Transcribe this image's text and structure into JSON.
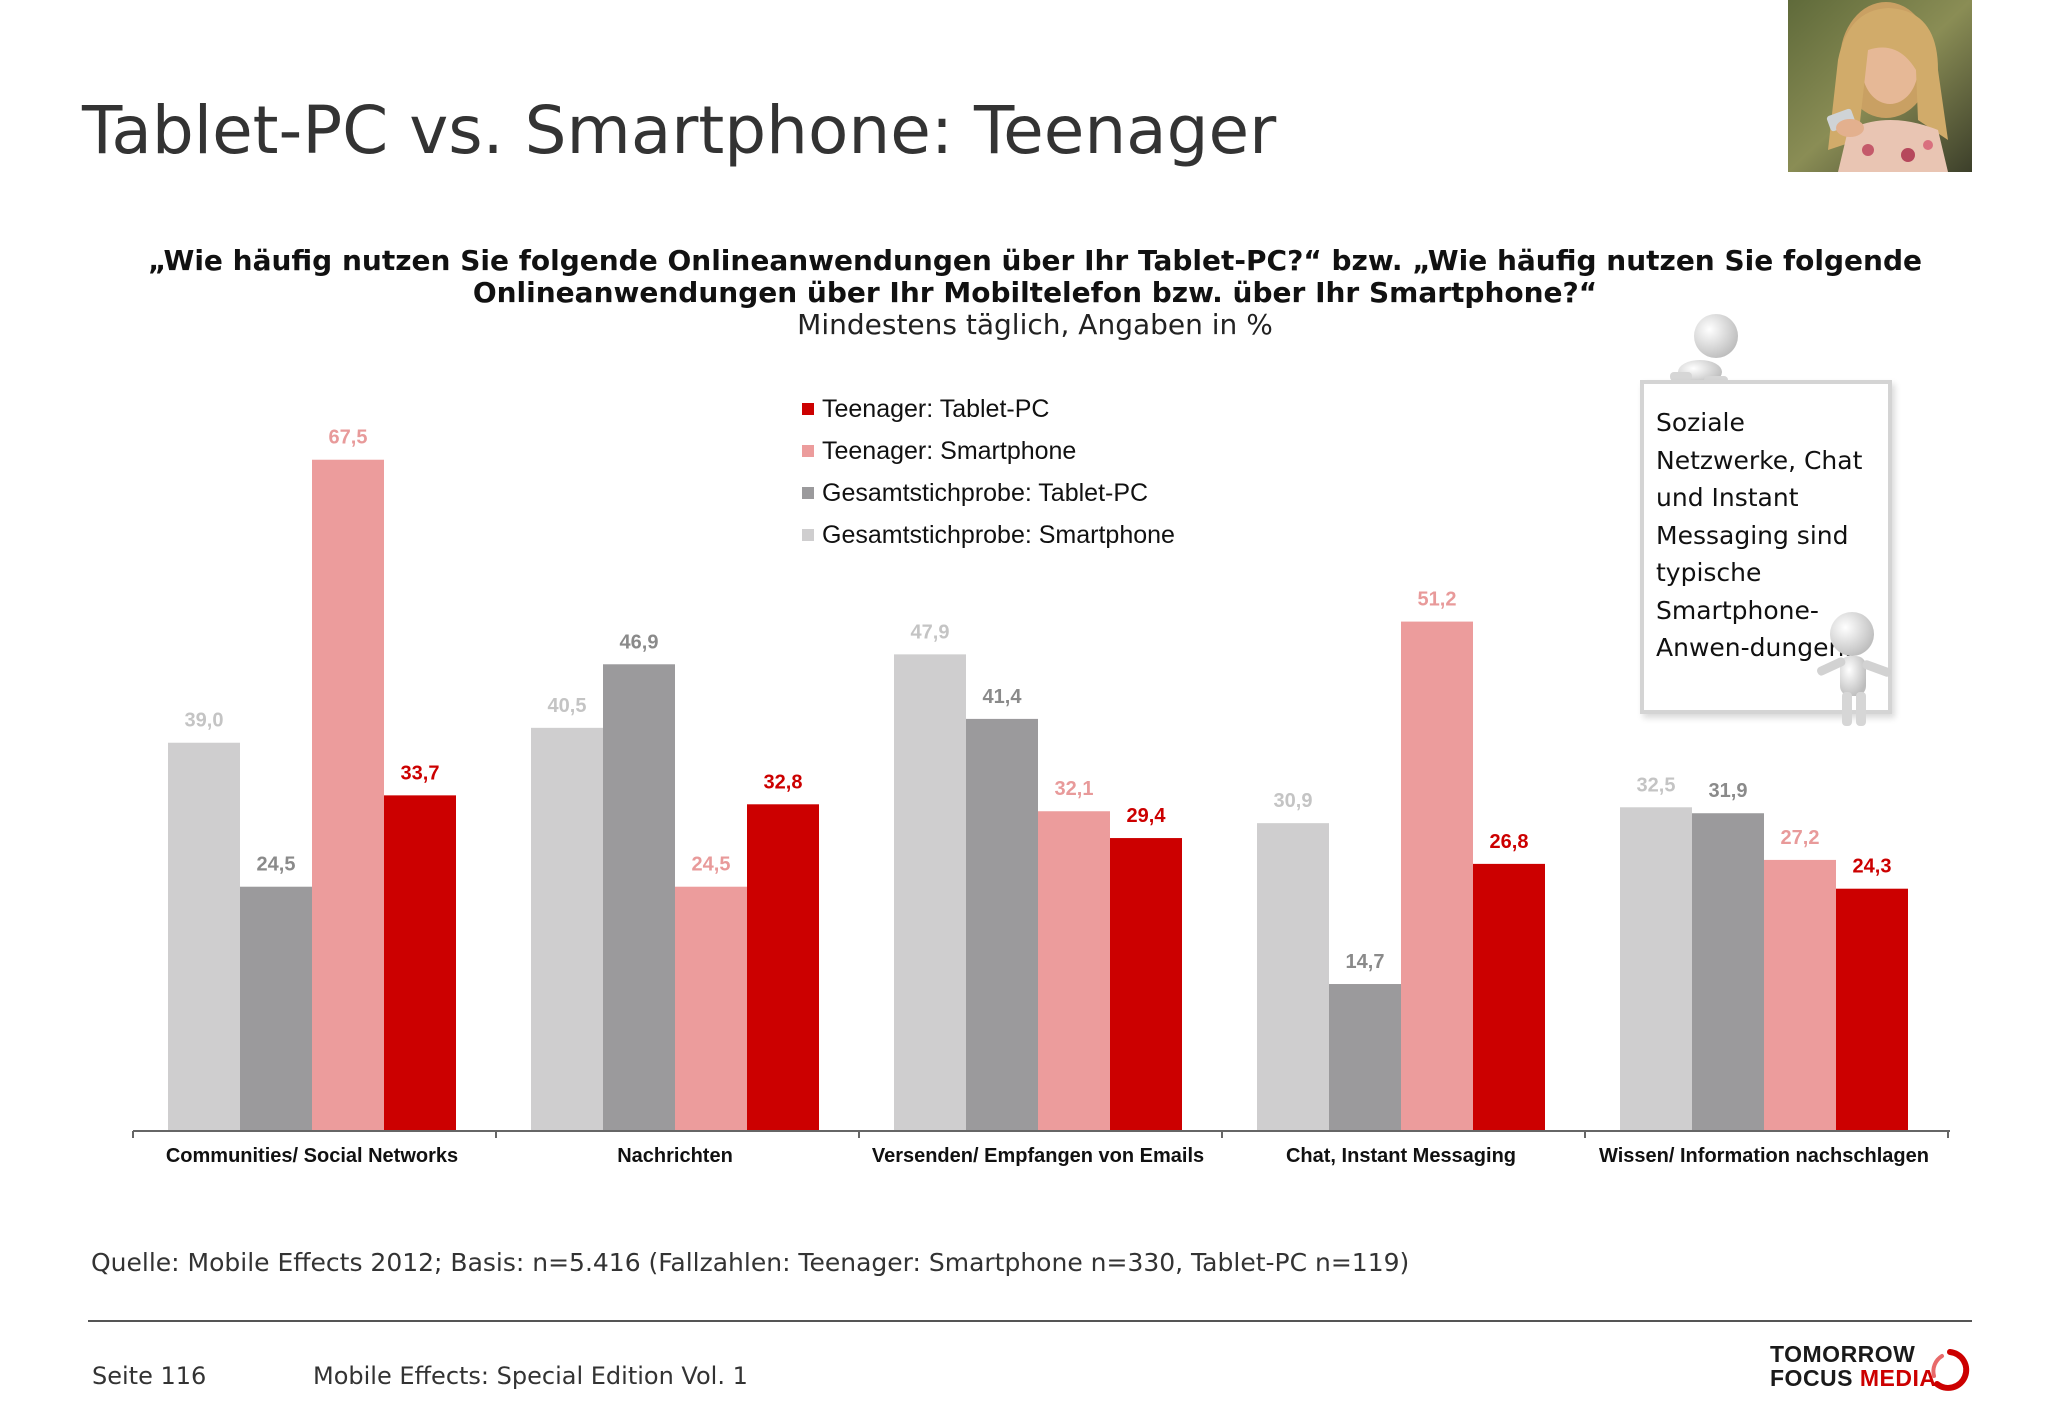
{
  "page": {
    "title": "Tablet-PC vs. Smartphone: Teenager",
    "question_line1": "„Wie häufig nutzen Sie folgende Onlineanwendungen über Ihr Tablet-PC?“ bzw. „Wie häufig nutzen Sie folgende",
    "question_line2": "Onlineanwendungen über Ihr Mobiltelefon bzw. über Ihr Smartphone?“",
    "subtitle": "Mindestens täglich, Angaben in %",
    "callout": "Soziale Netzwerke, Chat und Instant Messaging sind typische Smartphone-Anwen-dungen.",
    "source": "Quelle: Mobile Effects 2012; Basis: n=5.416 (Fallzahlen: Teenager: Smartphone n=330, Tablet-PC n=119)",
    "page_number": "Seite 116",
    "edition": "Mobile Effects: Special Edition Vol. 1",
    "logo_line1": "TOMORROW",
    "logo_line2a": "FOCUS ",
    "logo_line2b": "MEDIA"
  },
  "colors": {
    "teen_tablet": "#cc0000",
    "teen_smartphone": "#ec9c9c",
    "total_tablet": "#9b9a9c",
    "total_smartphone": "#cfcecf",
    "logo_red": "#cc0000"
  },
  "icons": [
    "photo-woman-smartphone",
    "figure-3d-man-icon",
    "logo-ring-icon"
  ],
  "chart_data": {
    "type": "bar",
    "categories": [
      "Communities/ Social Networks",
      "Nachrichten",
      "Versenden/ Empfangen von Emails",
      "Chat, Instant Messaging",
      "Wissen/ Information nachschlagen"
    ],
    "series": [
      {
        "name": "Gesamtstichprobe: Smartphone",
        "values": [
          39.0,
          40.5,
          47.9,
          30.9,
          32.5
        ],
        "labels": [
          "39,0",
          "40,5",
          "47,9",
          "30,9",
          "32,5"
        ],
        "color": "#cfcecf",
        "label_color": "#c4c4c4"
      },
      {
        "name": "Gesamtstichprobe: Tablet-PC",
        "values": [
          24.5,
          46.9,
          41.4,
          14.7,
          31.9
        ],
        "labels": [
          "24,5",
          "46,9",
          "41,4",
          "14,7",
          "31,9"
        ],
        "color": "#9b9a9c",
        "label_color": "#8a8a8a"
      },
      {
        "name": "Teenager: Smartphone",
        "values": [
          67.5,
          24.5,
          32.1,
          51.2,
          27.2
        ],
        "labels": [
          "67,5",
          "24,5",
          "32,1",
          "51,2",
          "27,2"
        ],
        "color": "#ec9c9c",
        "label_color": "#e89a9a"
      },
      {
        "name": "Teenager: Tablet-PC",
        "values": [
          33.7,
          32.8,
          29.4,
          26.8,
          24.3
        ],
        "labels": [
          "33,7",
          "32,8",
          "29,4",
          "26,8",
          "24,3"
        ],
        "color": "#cc0000",
        "label_color": "#cc0000"
      }
    ],
    "legend_order": [
      "Teenager: Tablet-PC",
      "Teenager: Smartphone",
      "Gesamtstichprobe: Tablet-PC",
      "Gesamtstichprobe: Smartphone"
    ],
    "legend_position": "top-center",
    "ylim": [
      0,
      75
    ],
    "grid": false,
    "xlabel": "",
    "ylabel": ""
  }
}
